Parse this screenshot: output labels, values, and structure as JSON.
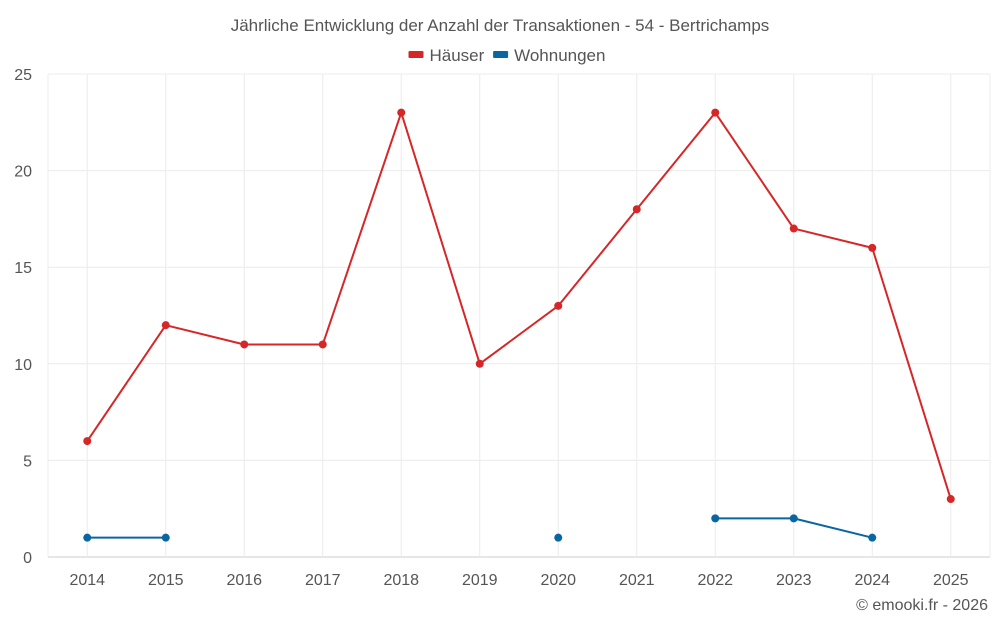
{
  "chart_data": {
    "type": "line",
    "title": "Jährliche Entwicklung der Anzahl der Transaktionen - 54 - Bertrichamps",
    "categories": [
      "2014",
      "2015",
      "2016",
      "2017",
      "2018",
      "2019",
      "2020",
      "2021",
      "2022",
      "2023",
      "2024",
      "2025"
    ],
    "series": [
      {
        "name": "Häuser",
        "color": "#d62728",
        "values": [
          6,
          12,
          11,
          11,
          23,
          10,
          13,
          18,
          23,
          17,
          16,
          3
        ]
      },
      {
        "name": "Wohnungen",
        "color": "#0a66a3",
        "values": [
          1,
          1,
          null,
          null,
          null,
          null,
          1,
          null,
          2,
          2,
          1,
          null
        ]
      }
    ],
    "ylim": [
      0,
      25
    ],
    "yticks": [
      0,
      5,
      10,
      15,
      20,
      25
    ],
    "xlabel": "",
    "ylabel": "",
    "grid": true,
    "legend_position": "top-center"
  },
  "credit": "© emooki.fr - 2026"
}
